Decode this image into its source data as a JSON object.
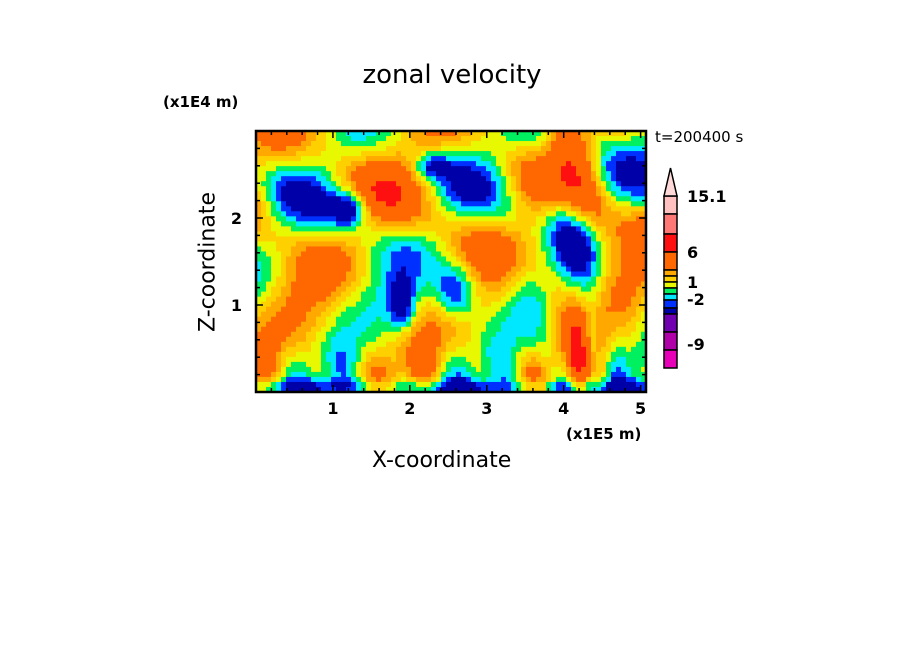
{
  "chart_data": {
    "type": "heatmap",
    "title": "zonal velocity",
    "xlabel": "X-coordinate",
    "ylabel": "Z-coordinate",
    "x_unit": "(x1E5 m)",
    "y_unit": "(x1E4 m)",
    "time_label": "t=200400 s",
    "xlim": [
      0,
      5.07
    ],
    "ylim": [
      0,
      3.0
    ],
    "x_ticks": [
      "1",
      "2",
      "3",
      "4",
      "5"
    ],
    "x_tick_values": [
      1,
      2,
      3,
      4,
      5
    ],
    "y_ticks": [
      "1",
      "2"
    ],
    "y_tick_values": [
      1,
      2
    ],
    "colorbar": {
      "labels": [
        "15.1",
        "6",
        "1",
        "-2",
        "-9"
      ],
      "label_values": [
        15.1,
        6,
        1,
        -2,
        -9
      ],
      "levels": [
        -12,
        -9,
        -6,
        -3,
        -2,
        -1,
        0,
        1,
        2,
        3,
        6,
        9,
        12,
        15.1
      ],
      "colors": [
        "#e800b8",
        "#b000a8",
        "#7000b0",
        "#0000a8",
        "#0030ff",
        "#00e8ff",
        "#00f060",
        "#e8f800",
        "#ffd000",
        "#ffa800",
        "#ff6800",
        "#ff1010",
        "#ff7878",
        "#ffc0c0",
        "#ffd8d8"
      ],
      "extend": "max"
    }
  }
}
